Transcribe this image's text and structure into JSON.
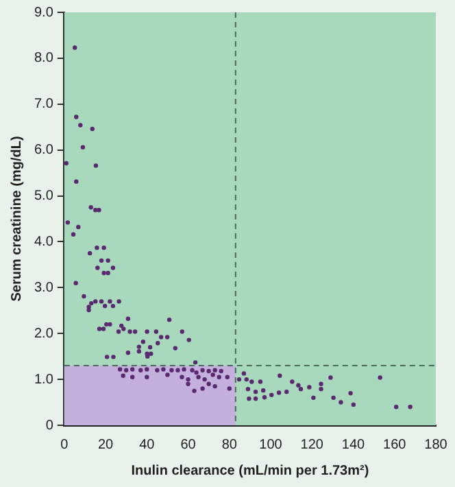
{
  "chart_data": {
    "type": "scatter",
    "xlabel": "Inulin clearance (mL/min per 1.73m²)",
    "ylabel": "Serum creatinine (mg/dL)",
    "xlim": [
      0,
      180
    ],
    "xticks": [
      0,
      20,
      40,
      60,
      80,
      100,
      120,
      140,
      160,
      180
    ],
    "ylim": [
      0,
      9
    ],
    "yticks": [
      0,
      {
        "value": 1,
        "label": "1.0"
      },
      {
        "value": 2,
        "label": "2.0"
      },
      {
        "value": 3,
        "label": "3.0"
      },
      {
        "value": 4,
        "label": "4.0"
      },
      {
        "value": 5,
        "label": "5.0"
      },
      {
        "value": 6,
        "label": "6.0"
      },
      {
        "value": 7,
        "label": "7.0"
      },
      {
        "value": 8,
        "label": "8.0"
      },
      {
        "value": 9,
        "label": "9.0"
      }
    ],
    "grid": false,
    "legend": false,
    "marker": "circle",
    "ref_lines": [
      {
        "axis": "x",
        "value": 83,
        "line_style": "dashed",
        "color": "#4a6a5a"
      },
      {
        "axis": "y",
        "value": 1.3,
        "line_style": "dashed",
        "color": "#4a6a5a"
      }
    ],
    "bands": [
      {
        "axis": "y",
        "from": 0,
        "to": 1.3,
        "color": "#c4b0dc"
      }
    ],
    "series": [
      {
        "color": "#5a2a70",
        "x": [
          5.1,
          5.8,
          7.8,
          13.6,
          9,
          1,
          15.3,
          5.8,
          12.9,
          15.1,
          16.8,
          1.7,
          4.4,
          6.8,
          12.4,
          15.8,
          19.2,
          18,
          21.2,
          16.1,
          19.2,
          21.2,
          23.6,
          5.6,
          9.5,
          11.9,
          11.9,
          13.1,
          15.1,
          18,
          19.7,
          22.1,
          23.6,
          26.5,
          30.9,
          17,
          19,
          20.4,
          22.1,
          26.3,
          27.7,
          28.7,
          31.8,
          34.3,
          40.1,
          44.5,
          46.9,
          49.9,
          50.9,
          57.1,
          60.4,
          30.9,
          36.2,
          36.2,
          38.2,
          40.1,
          42,
          40.3,
          45.3,
          41.6,
          53.8,
          20.7,
          23.8,
          63.5,
          27,
          30,
          33,
          37,
          40,
          45,
          48,
          52,
          55,
          58,
          62,
          64,
          67,
          70,
          73,
          76,
          28.5,
          33,
          40,
          50,
          57,
          60,
          65,
          68,
          72,
          75,
          79,
          60,
          63,
          67,
          70,
          73,
          80,
          87,
          84.7,
          88.3,
          90.8,
          95,
          89,
          92.7,
          96.4,
          89.5,
          92.7,
          97,
          100.4,
          104,
          104.4,
          107.7,
          110.4,
          113.4,
          114.6,
          118.7,
          120.7,
          124.4,
          124.4,
          129,
          130.4,
          134,
          138.7,
          140.1,
          153,
          160.8,
          167.6
        ],
        "values": [
          8.23,
          6.72,
          6.54,
          6.46,
          6.06,
          5.71,
          5.66,
          5.31,
          4.75,
          4.69,
          4.69,
          4.42,
          4.16,
          4.32,
          3.75,
          3.87,
          3.87,
          3.59,
          3.59,
          3.43,
          3.32,
          3.32,
          3.43,
          3.1,
          2.81,
          2.58,
          2.51,
          2.66,
          2.7,
          2.7,
          2.6,
          2.7,
          2.6,
          2.7,
          2.32,
          2.1,
          2.1,
          2.2,
          2.2,
          2.04,
          2.17,
          2.1,
          2.04,
          2.04,
          2.04,
          2.04,
          1.92,
          1.92,
          2.3,
          2.04,
          1.86,
          1.58,
          1.71,
          1.61,
          1.82,
          1.56,
          1.56,
          1.5,
          1.79,
          1.7,
          1.68,
          1.49,
          1.49,
          1.37,
          1.22,
          1.2,
          1.22,
          1.2,
          1.22,
          1.2,
          1.22,
          1.2,
          1.2,
          1.22,
          1.2,
          1.15,
          1.2,
          1.18,
          1.2,
          1.18,
          1.08,
          1.05,
          1.05,
          1.1,
          1.05,
          1.0,
          1.05,
          1.0,
          1.1,
          1.05,
          1.05,
          0.9,
          0.75,
          0.8,
          0.9,
          0.85,
          0.8,
          1.13,
          1.0,
          1.0,
          0.95,
          0.95,
          0.79,
          0.73,
          0.76,
          0.58,
          0.58,
          0.61,
          0.66,
          0.71,
          1.08,
          0.73,
          0.95,
          0.87,
          0.79,
          0.83,
          0.6,
          0.9,
          0.79,
          1.04,
          0.6,
          0.5,
          0.7,
          0.45,
          1.04,
          0.4,
          0.4
        ]
      }
    ]
  }
}
